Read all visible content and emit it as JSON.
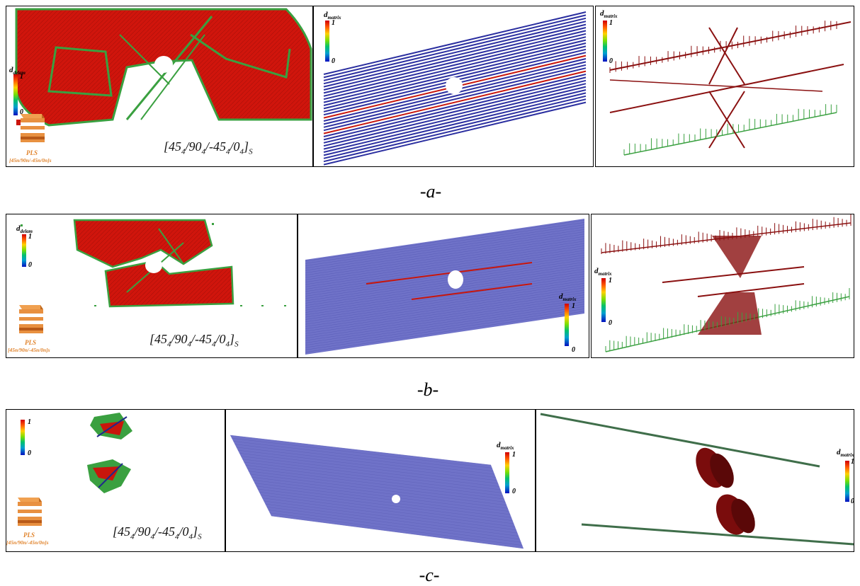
{
  "figure": {
    "rows": [
      {
        "label": "-a-"
      },
      {
        "label": "-b-"
      },
      {
        "label": "-c-"
      }
    ],
    "colorbars": {
      "a1": {
        "title": "d",
        "sub": "delam",
        "hi": "1",
        "lo": "0"
      },
      "a2": {
        "title": "d",
        "sub": "matrix",
        "hi": "1",
        "lo": "0"
      },
      "a3": {
        "title": "d",
        "sub": "matrix",
        "hi": "1",
        "lo": "0"
      },
      "b1": {
        "title": "d",
        "sub": "delam",
        "hi": "1",
        "lo": "0"
      },
      "b2": {
        "title": "d",
        "sub": "matrix",
        "hi": "1",
        "lo": "0"
      },
      "b3": {
        "title": "d",
        "sub": "matrix",
        "hi": "1",
        "lo": "0"
      },
      "c1": {
        "title": "",
        "sub": "",
        "hi": "1",
        "lo": "0"
      },
      "c2": {
        "title": "d",
        "sub": "matrix",
        "hi": "1",
        "lo": "0"
      },
      "c3": {
        "title": "d",
        "sub": "matrix",
        "hi": "1",
        "lo": "0"
      }
    },
    "layup": {
      "parts": [
        "[45",
        "4",
        "/90",
        "4",
        "/-45",
        "4",
        "/0",
        "4",
        "]",
        "S"
      ]
    },
    "pls": {
      "name": "PLS",
      "sequence": "[45n/90n/-45n/0n]s"
    },
    "colors": {
      "damage_red": "#c8160c",
      "fiber_blue": "#2b2fa0",
      "mesh_blue": "#6f72c8",
      "crack_red": "#8a1010",
      "edge_green": "#3aa040",
      "pls_orange": "#e0822a"
    }
  }
}
